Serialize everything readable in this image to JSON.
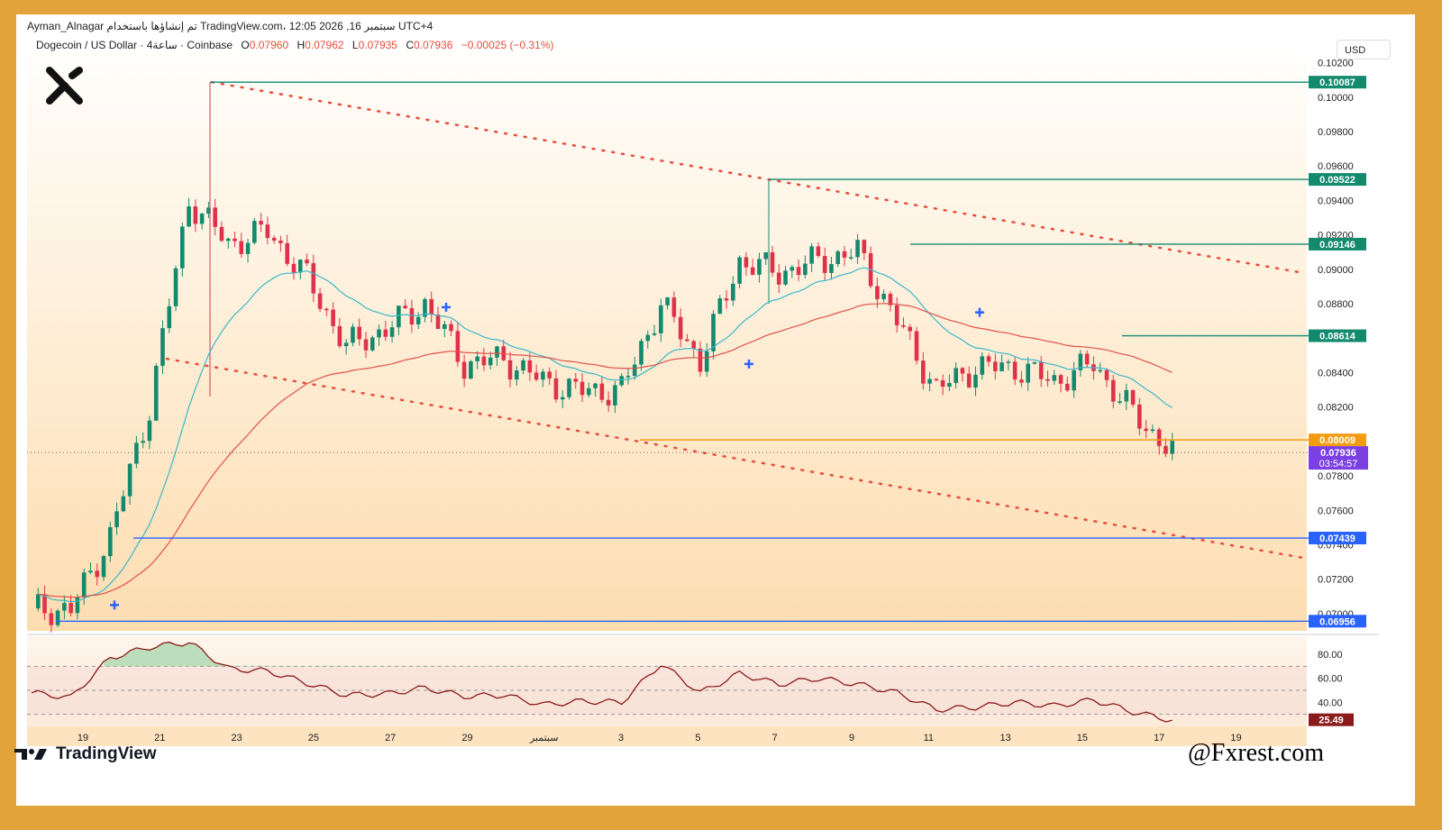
{
  "header": {
    "top_line": "Ayman_Alnagar تم إنشاؤها باستخدام TradingView.com، 12:05 2026 ,16 سبتمبر UTC+4",
    "symbol": "Dogecoin / US Dollar · 4ساعة · Coinbase",
    "open_label": "O",
    "open": "0.07960",
    "high_label": "H",
    "high": "0.07962",
    "low_label": "L",
    "low": "0.07935",
    "close_label": "C",
    "close": "0.07936",
    "change": "−0.00025 (−0.31%)",
    "currency": "USD"
  },
  "price_axis": {
    "ticks": [
      "0.10200",
      "0.10000",
      "0.09800",
      "0.09600",
      "0.09400",
      "0.09200",
      "0.09000",
      "0.08800",
      "0.08400",
      "0.08200",
      "0.07800",
      "0.07600",
      "0.07400",
      "0.07200",
      "0.07000"
    ]
  },
  "levels": [
    {
      "label": "0.10087",
      "value": 0.10087,
      "color": "#138a6e"
    },
    {
      "label": "0.09522",
      "value": 0.09522,
      "color": "#138a6e"
    },
    {
      "label": "0.09146",
      "value": 0.09146,
      "color": "#138a6e"
    },
    {
      "label": "0.08614",
      "value": 0.08614,
      "color": "#138a6e"
    },
    {
      "label": "0.08009",
      "value": 0.08009,
      "color": "#f39c12"
    },
    {
      "label": "0.07439",
      "value": 0.07439,
      "color": "#2962ff"
    },
    {
      "label": "0.06956",
      "value": 0.06956,
      "color": "#2962ff"
    }
  ],
  "current_price": {
    "label": "0.07936",
    "countdown": "03:54:57",
    "value": 0.07936,
    "color": "#7b3fe4"
  },
  "time_axis": [
    "19",
    "21",
    "23",
    "25",
    "27",
    "29",
    "سبتمبر",
    "3",
    "5",
    "7",
    "9",
    "11",
    "13",
    "15",
    "17",
    "19"
  ],
  "rsi": {
    "ticks": [
      "80.00",
      "60.00",
      "40.00"
    ],
    "value_label": "25.49",
    "line_color": "#8b1a1a"
  },
  "brand": {
    "tradingview": "TradingView",
    "watermark": "@Fxrest.com"
  },
  "colors": {
    "up": "#138a6e",
    "down": "#e0314b",
    "ema_fast": "#3ab7c9",
    "ema_slow": "#e0514b",
    "trendline": "#e74c3c"
  },
  "chart_data": {
    "type": "candlestick",
    "x": [
      "08-18",
      "08-19",
      "08-20",
      "08-21",
      "08-22",
      "08-23",
      "08-24",
      "08-25",
      "08-26",
      "08-27",
      "08-28",
      "08-29",
      "08-30",
      "08-31",
      "09-01",
      "09-02",
      "09-03",
      "09-04",
      "09-05",
      "09-06",
      "09-07",
      "09-08",
      "09-09",
      "09-10",
      "09-11",
      "09-12",
      "09-13",
      "09-14",
      "09-15",
      "09-16"
    ],
    "close": [
      0.0703,
      0.0702,
      0.0745,
      0.082,
      0.094,
      0.0915,
      0.0922,
      0.0895,
      0.0855,
      0.0865,
      0.088,
      0.0845,
      0.0848,
      0.0835,
      0.0829,
      0.083,
      0.088,
      0.0847,
      0.0905,
      0.0898,
      0.0905,
      0.091,
      0.087,
      0.083,
      0.0843,
      0.0843,
      0.0835,
      0.0845,
      0.0816,
      0.0794
    ],
    "series": [
      {
        "name": "RSI",
        "values": [
          48,
          44,
          77,
          86,
          90,
          68,
          66,
          56,
          46,
          47,
          52,
          45,
          46,
          38,
          41,
          40,
          72,
          48,
          64,
          55,
          60,
          55,
          48,
          34,
          36,
          40,
          37,
          42,
          32,
          25
        ]
      }
    ],
    "ylim": [
      0.069,
      0.1025
    ]
  }
}
